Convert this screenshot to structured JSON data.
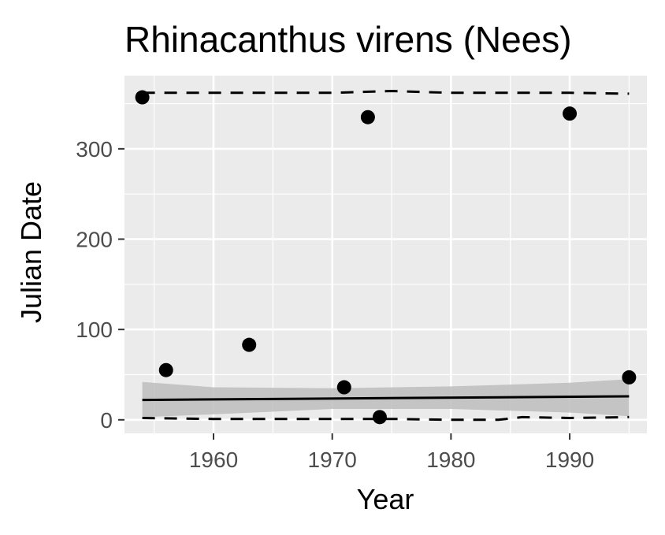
{
  "chart_data": {
    "type": "scatter",
    "title": "Rhinacanthus virens (Nees)",
    "xlabel": "Year",
    "ylabel": "Julian Date",
    "xlim": [
      1952.5,
      1996.5
    ],
    "ylim": [
      -15,
      381
    ],
    "x_ticks": [
      1960,
      1970,
      1980,
      1990
    ],
    "y_ticks": [
      0,
      100,
      200,
      300
    ],
    "grid": true,
    "legend": "none",
    "colors": {
      "panel": "#ebebeb",
      "grid": "#ffffff",
      "points": "#000000",
      "ribbon": "#bdbdbd",
      "tick_label": "#4d4d4d",
      "tick_mark": "#333333"
    },
    "points": [
      {
        "x": 1954,
        "y": 357
      },
      {
        "x": 1956,
        "y": 55
      },
      {
        "x": 1963,
        "y": 83
      },
      {
        "x": 1971,
        "y": 36
      },
      {
        "x": 1973,
        "y": 335
      },
      {
        "x": 1974,
        "y": 3
      },
      {
        "x": 1990,
        "y": 339
      },
      {
        "x": 1995,
        "y": 47
      }
    ],
    "trend_line": {
      "x": [
        1954,
        1995
      ],
      "y": [
        22,
        26
      ]
    },
    "confidence_band": {
      "x": [
        1954,
        1960,
        1970,
        1980,
        1990,
        1995
      ],
      "lower": [
        3,
        6,
        12,
        12,
        8,
        4
      ],
      "upper": [
        42,
        36,
        35,
        37,
        41,
        45
      ]
    },
    "quantile_upper": {
      "x": [
        1954,
        1960,
        1970,
        1975,
        1980,
        1985,
        1990,
        1995
      ],
      "y": [
        362,
        362,
        362,
        364,
        362,
        362,
        362,
        361
      ]
    },
    "quantile_lower": {
      "x": [
        1954,
        1960,
        1970,
        1975,
        1980,
        1984,
        1986,
        1990,
        1995
      ],
      "y": [
        2,
        1,
        1,
        1,
        0,
        0,
        3,
        2,
        3
      ]
    }
  }
}
